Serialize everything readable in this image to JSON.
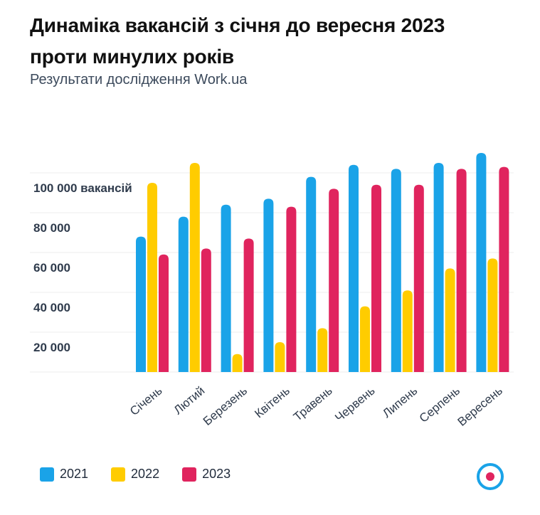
{
  "title_line1": "Динаміка вакансій з січня до вересня 2023",
  "title_line2": "проти минулих років",
  "subtitle": "Результати дослідження Work.ua",
  "colors": {
    "2021": "#1aa3e8",
    "2022": "#ffcc00",
    "2023": "#e0245e"
  },
  "logo_icon": "work-ua-logo-icon",
  "chart_data": {
    "type": "bar",
    "categories": [
      "Січень",
      "Лютий",
      "Березень",
      "Квітень",
      "Травень",
      "Червень",
      "Липень",
      "Серпень",
      "Вересень"
    ],
    "series": [
      {
        "name": "2021",
        "values": [
          68000,
          78000,
          84000,
          87000,
          98000,
          104000,
          102000,
          105000,
          110000
        ]
      },
      {
        "name": "2022",
        "values": [
          95000,
          105000,
          9000,
          15000,
          22000,
          33000,
          41000,
          52000,
          57000
        ]
      },
      {
        "name": "2023",
        "values": [
          59000,
          62000,
          67000,
          83000,
          92000,
          94000,
          94000,
          102000,
          103000
        ]
      }
    ],
    "y_ticks": [
      {
        "value": 20000,
        "label": "20 000"
      },
      {
        "value": 40000,
        "label": "40 000"
      },
      {
        "value": 60000,
        "label": "60 000"
      },
      {
        "value": 80000,
        "label": "80 000"
      },
      {
        "value": 100000,
        "label": "100 000 вакансій"
      }
    ],
    "ylim": [
      0,
      110000
    ],
    "grid": true,
    "legend_position": "bottom-left"
  }
}
